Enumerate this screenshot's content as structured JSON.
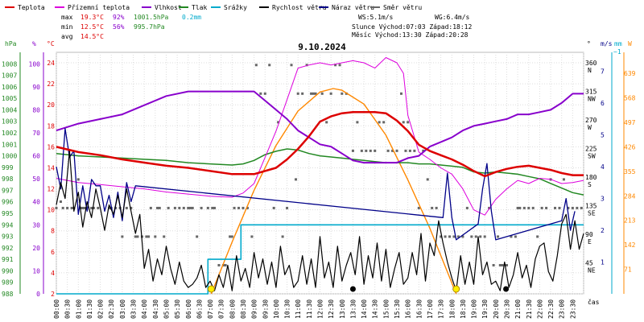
{
  "legend": [
    {
      "label": "Teplota",
      "color": "#dd0000"
    },
    {
      "label": "Přízemní teplota",
      "color": "#dd00dd"
    },
    {
      "label": "Vlhkost",
      "color": "#8800cc"
    },
    {
      "label": "Tlak",
      "color": "#228822"
    },
    {
      "label": "Srážky",
      "color": "#00aacc"
    },
    {
      "label": "Rychlost větru",
      "color": "#000000"
    },
    {
      "label": "Náraz větru",
      "color": "#000088"
    },
    {
      "label": "Směr větru",
      "color": "#666666"
    }
  ],
  "stats": {
    "max_label": "max",
    "max_temp": "19.3°C",
    "max_hum": "92%",
    "max_press": "1001.5hPa",
    "max_rain": "0.2mm",
    "min_label": "min",
    "min_temp": "12.5°C",
    "min_hum": "56%",
    "min_press": "995.7hPa",
    "avg_label": "avg",
    "avg_temp": "14.5°C",
    "ws": "WS:5.1m/s",
    "wg": "WG:6.4m/s",
    "sun": "Slunce Východ:07:03  Západ:18:12",
    "moon": "Měsíc  Východ:13:30  Západ:20:28"
  },
  "chart_data": {
    "type": "line",
    "title": "9.10.2024",
    "x_unit_label": "čas",
    "x_ticks": [
      "00:00",
      "00:30",
      "01:00",
      "01:30",
      "02:00",
      "02:30",
      "03:00",
      "03:30",
      "04:00",
      "04:30",
      "05:00",
      "05:30",
      "06:00",
      "06:30",
      "07:00",
      "07:30",
      "08:00",
      "08:30",
      "09:00",
      "09:30",
      "10:00",
      "10:30",
      "11:00",
      "11:30",
      "12:00",
      "12:30",
      "13:00",
      "13:30",
      "14:00",
      "14:30",
      "15:00",
      "15:30",
      "16:00",
      "16:30",
      "17:00",
      "17:30",
      "18:00",
      "18:30",
      "19:00",
      "19:30",
      "20:00",
      "20:30",
      "21:00",
      "21:30",
      "22:00",
      "22:30",
      "23:00",
      "23:30"
    ],
    "axes": {
      "hpa": {
        "label": "hPa",
        "color": "#228822",
        "ticks": [
          988,
          989,
          990,
          991,
          992,
          993,
          994,
          995,
          996,
          997,
          998,
          999,
          1000,
          1001,
          1002,
          1003,
          1004,
          1005,
          1006,
          1007,
          1008
        ],
        "range": [
          988,
          1009
        ]
      },
      "pct": {
        "label": "%",
        "color": "#8800cc",
        "ticks": [
          0,
          10,
          20,
          30,
          40,
          50,
          60,
          70,
          80,
          90,
          100
        ],
        "range": [
          0,
          105
        ]
      },
      "temp": {
        "label": "°C",
        "color": "#dd0000",
        "ticks": [
          2,
          4,
          6,
          8,
          10,
          12,
          14,
          16,
          18,
          20,
          22,
          24
        ],
        "range": [
          2,
          25
        ]
      },
      "dir": {
        "label": "°",
        "ticks": [
          {
            "deg": "45",
            "name": "NE"
          },
          {
            "deg": "90",
            "name": "E"
          },
          {
            "deg": "135",
            "name": "SE"
          },
          {
            "deg": "180",
            "name": "S"
          },
          {
            "deg": "225",
            "name": "SW"
          },
          {
            "deg": "270",
            "name": "W"
          },
          {
            "deg": "315",
            "name": "NW"
          },
          {
            "deg": "360",
            "name": "N"
          }
        ],
        "range": [
          0,
          380
        ]
      },
      "ms": {
        "label": "m/s",
        "color": "#000088",
        "ticks": [
          1,
          2,
          3,
          4,
          5,
          6,
          7
        ],
        "range": [
          0,
          7.6
        ]
      },
      "mm": {
        "label": "mm",
        "color": "#00aacc",
        "ticks": [
          "~1"
        ]
      },
      "wm2": {
        "label": "W",
        "color": "#ff8800",
        "ticks": [
          71,
          142,
          213,
          284,
          355,
          426,
          497,
          568,
          639
        ],
        "range": [
          0,
          639
        ]
      }
    },
    "series": {
      "temperature": {
        "color": "#dd0000",
        "x": [
          0,
          1,
          2,
          3,
          4,
          5,
          6,
          7,
          8,
          9,
          10,
          10.5,
          11,
          11.5,
          12,
          12.5,
          13,
          13.5,
          14,
          14.5,
          15,
          15.5,
          16,
          16.5,
          17,
          17.5,
          18,
          18.5,
          19,
          19.5,
          20,
          20.5,
          21,
          21.5,
          22,
          22.5,
          23,
          23.5,
          24
        ],
        "y": [
          16.0,
          15.5,
          15.2,
          14.8,
          14.5,
          14.2,
          14.0,
          13.7,
          13.4,
          13.4,
          14.0,
          14.8,
          15.8,
          17.0,
          18.4,
          18.9,
          19.2,
          19.3,
          19.3,
          19.3,
          19.2,
          18.5,
          17.5,
          16.2,
          15.6,
          15.2,
          14.8,
          14.3,
          13.7,
          13.2,
          13.6,
          13.9,
          14.1,
          14.2,
          14.0,
          13.8,
          13.5,
          13.3,
          13.3
        ]
      },
      "ground_temperature": {
        "color": "#dd00dd",
        "x": [
          0,
          1,
          2,
          3,
          4,
          5,
          6,
          7,
          8,
          8.5,
          9,
          9.5,
          10,
          10.5,
          11,
          11.5,
          12,
          12.5,
          13,
          13.5,
          14,
          14.5,
          15,
          15.5,
          15.8,
          16,
          16.5,
          17,
          17.5,
          18,
          18.5,
          19,
          19.5,
          20,
          20.5,
          21,
          21.5,
          22,
          22.5,
          23,
          23.5,
          24
        ],
        "y": [
          13.0,
          12.6,
          12.4,
          12.2,
          12.0,
          11.7,
          11.5,
          11.3,
          11.2,
          11.6,
          12.5,
          15.0,
          17.5,
          20.5,
          23.5,
          23.8,
          24.0,
          23.8,
          24.0,
          24.2,
          24.0,
          23.5,
          24.5,
          24.0,
          23.0,
          19.0,
          15.5,
          14.8,
          14.0,
          13.4,
          12.0,
          10.0,
          9.5,
          11.0,
          12.0,
          12.8,
          12.5,
          13.0,
          12.9,
          12.5,
          12.6,
          12.8
        ]
      },
      "humidity": {
        "color": "#8800cc",
        "x": [
          0,
          1,
          2,
          3,
          4,
          5,
          6,
          7,
          8,
          9,
          9.5,
          10,
          10.5,
          11,
          11.5,
          12,
          12.5,
          13,
          13.5,
          14,
          14.5,
          15,
          15.5,
          16,
          16.5,
          17,
          17.5,
          18,
          18.5,
          19,
          19.5,
          20,
          20.5,
          21,
          21.5,
          22,
          22.5,
          23,
          23.5,
          24
        ],
        "y": [
          71,
          74,
          76,
          78,
          82,
          86,
          88,
          88,
          88,
          88,
          84,
          80,
          76,
          71,
          68,
          65,
          64,
          61,
          58,
          57,
          57,
          57,
          57,
          59,
          60,
          64,
          66,
          68,
          71,
          73,
          74,
          75,
          76,
          78,
          78,
          79,
          80,
          83,
          87,
          87
        ]
      },
      "pressure": {
        "color": "#228822",
        "x": [
          0,
          1,
          2,
          3,
          4,
          5,
          6,
          7,
          8,
          8.5,
          9,
          9.5,
          10,
          10.5,
          11,
          11.5,
          12,
          12.5,
          13,
          13.5,
          14,
          14.5,
          15,
          15.5,
          16,
          16.5,
          17,
          17.5,
          18,
          18.5,
          19,
          19.5,
          20,
          20.5,
          21,
          21.5,
          22,
          22.5,
          23,
          23.5,
          24
        ],
        "y": [
          1000.2,
          1000.0,
          999.9,
          999.8,
          999.7,
          999.6,
          999.4,
          999.3,
          999.2,
          999.3,
          999.6,
          1000.1,
          1000.4,
          1000.6,
          1000.5,
          1000.2,
          1000.0,
          999.9,
          999.8,
          999.7,
          999.6,
          999.5,
          999.4,
          999.4,
          999.4,
          999.3,
          999.3,
          999.2,
          999.1,
          999.0,
          998.6,
          998.5,
          998.6,
          998.5,
          998.4,
          998.2,
          998.0,
          997.6,
          997.2,
          996.8,
          996.6
        ]
      },
      "rain": {
        "color": "#00aacc",
        "x": [
          0,
          6.9,
          6.9,
          8.4,
          8.4,
          24
        ],
        "y": [
          0,
          0,
          0.1,
          0.1,
          0.2,
          0.2
        ]
      },
      "wind_speed": {
        "color": "#000000",
        "x": [
          0,
          0.2,
          0.4,
          0.6,
          0.8,
          1.0,
          1.2,
          1.4,
          1.6,
          1.8,
          2.0,
          2.2,
          2.4,
          2.6,
          2.8,
          3.0,
          3.2,
          3.4,
          3.6,
          3.8,
          4.0,
          4.2,
          4.4,
          4.6,
          4.8,
          5.0,
          5.2,
          5.4,
          5.6,
          5.8,
          6.0,
          6.2,
          6.4,
          6.6,
          6.8,
          7.0,
          7.2,
          7.4,
          7.6,
          7.8,
          8.0,
          8.2,
          8.4,
          8.6,
          8.8,
          9.0,
          9.2,
          9.4,
          9.6,
          9.8,
          10.0,
          10.2,
          10.4,
          10.6,
          10.8,
          11.0,
          11.2,
          11.4,
          11.6,
          11.8,
          12.0,
          12.2,
          12.4,
          12.6,
          12.8,
          13.0,
          13.2,
          13.4,
          13.6,
          13.8,
          14.0,
          14.2,
          14.4,
          14.6,
          14.8,
          15.0,
          15.2,
          15.4,
          15.6,
          15.8,
          16.0,
          16.2,
          16.4,
          16.6,
          16.8,
          17.0,
          17.2,
          17.4,
          17.6,
          17.8,
          18.0,
          18.2,
          18.4,
          18.6,
          18.8,
          19.0,
          19.2,
          19.4,
          19.6,
          19.8,
          20.0,
          20.2,
          20.4,
          20.6,
          20.8,
          21.0,
          21.2,
          21.4,
          21.6,
          21.8,
          22.0,
          22.2,
          22.4,
          22.6,
          22.8,
          23.0,
          23.2,
          23.4,
          23.6,
          23.8,
          24.0
        ],
        "y": [
          2.8,
          3.5,
          3.0,
          4.5,
          2.6,
          3.2,
          2.1,
          2.9,
          2.4,
          3.3,
          2.7,
          2.0,
          2.8,
          2.5,
          3.1,
          2.4,
          3.3,
          2.6,
          1.9,
          2.5,
          0.8,
          1.4,
          0.4,
          1.1,
          0.6,
          1.5,
          0.8,
          0.3,
          1.0,
          0.4,
          0.2,
          0.3,
          0.5,
          0.9,
          0.2,
          0.4,
          0.1,
          0.6,
          0.2,
          0.9,
          0.1,
          1.2,
          0.4,
          0.8,
          0.2,
          1.3,
          0.5,
          1.1,
          0.3,
          1.0,
          0.2,
          1.5,
          0.6,
          0.9,
          0.2,
          0.4,
          1.2,
          0.3,
          1.1,
          0.2,
          1.8,
          0.5,
          1.0,
          0.2,
          1.5,
          0.4,
          0.9,
          1.3,
          0.6,
          1.8,
          0.3,
          1.2,
          0.5,
          1.6,
          0.4,
          1.4,
          0.2,
          0.8,
          1.3,
          0.3,
          0.5,
          1.3,
          0.6,
          1.9,
          0.4,
          1.6,
          1.2,
          2.3,
          1.6,
          1.0,
          0.5,
          0.1,
          1.2,
          0.3,
          1.0,
          0.3,
          1.8,
          0.6,
          1.0,
          0.3,
          0.4,
          0.1,
          1.0,
          0.2,
          0.6,
          1.3,
          0.5,
          0.9,
          0.2,
          1.1,
          1.5,
          1.6,
          0.7,
          0.4,
          1.2,
          2.2,
          2.5,
          1.4,
          2.3,
          1.4,
          1.9
        ]
      },
      "wind_gust": {
        "color": "#000088",
        "x": [
          0,
          0.2,
          0.4,
          0.6,
          0.8,
          1.0,
          1.2,
          1.4,
          1.6,
          1.8,
          2.0,
          2.2,
          2.4,
          2.6,
          2.8,
          3.0,
          3.2,
          3.4,
          3.6,
          17.6,
          17.8,
          18.0,
          18.2,
          19.2,
          19.4,
          19.6,
          19.8,
          20.0,
          23.0,
          23.2,
          23.4,
          23.6
        ],
        "y": [
          4.0,
          3.3,
          5.2,
          4.3,
          4.5,
          2.5,
          3.4,
          2.6,
          3.6,
          3.4,
          3.4,
          2.6,
          3.1,
          2.4,
          3.2,
          2.3,
          3.5,
          2.9,
          3.4,
          2.4,
          3.8,
          2.4,
          1.7,
          2.2,
          3.3,
          4.1,
          2.6,
          1.7,
          2.3,
          3.0,
          2.0,
          2.6
        ]
      },
      "solar": {
        "color": "#ff8800",
        "x": [
          7.05,
          8.0,
          9.0,
          10.0,
          11.0,
          12.0,
          12.6,
          13.0,
          14.0,
          15.0,
          16.0,
          17.0,
          18.2
        ],
        "y": [
          0,
          150,
          300,
          430,
          530,
          585,
          595,
          590,
          550,
          460,
          330,
          190,
          0
        ]
      },
      "wind_direction": {
        "color": "#666666",
        "x": [
          0.0,
          0.2,
          0.3,
          0.5,
          0.7,
          0.8,
          1.0,
          1.1,
          1.2,
          1.3,
          1.6,
          1.7,
          1.9,
          2.4,
          2.5,
          2.7,
          2.9,
          3.0,
          3.2,
          3.4,
          3.6,
          3.7,
          3.9,
          4.1,
          4.2,
          4.3,
          4.5,
          4.6,
          4.7,
          4.9,
          5.1,
          5.4,
          5.6,
          5.8,
          6.0,
          6.1,
          6.2,
          6.4,
          6.6,
          6.9,
          7.1,
          7.2,
          7.4,
          7.6,
          7.7,
          7.9,
          8.0,
          8.1,
          8.3,
          8.5,
          8.7,
          8.9,
          9.1,
          9.3,
          9.5,
          9.7,
          9.9,
          10.1,
          10.3,
          10.5,
          10.7,
          10.9,
          11.0,
          11.2,
          11.4,
          11.6,
          11.7,
          11.8,
          12.1,
          12.3,
          12.5,
          12.7,
          12.9,
          13.0,
          13.2,
          13.5,
          13.7,
          13.9,
          14.1,
          14.3,
          14.5,
          14.7,
          14.9,
          15.1,
          15.3,
          15.5,
          15.7,
          15.8,
          15.9,
          16.0,
          16.1,
          16.3,
          16.5,
          16.7,
          16.9,
          17.1,
          17.3,
          17.5,
          17.7,
          17.9,
          18.1,
          18.3,
          18.5,
          18.7,
          18.9,
          19.1,
          19.3,
          19.5,
          19.7,
          19.9,
          20.1,
          20.2,
          20.3,
          20.5,
          20.7,
          20.9,
          21.0,
          21.1,
          21.3,
          21.5,
          21.7,
          21.9,
          22.1,
          22.3,
          22.5,
          22.7,
          22.9,
          23.1,
          23.3,
          23.5,
          23.7,
          23.9
        ],
        "y": [
          135,
          145,
          135,
          135,
          135,
          135,
          180,
          135,
          135,
          135,
          135,
          135,
          135,
          135,
          135,
          135,
          135,
          90,
          135,
          135,
          90,
          90,
          90,
          90,
          90,
          135,
          90,
          135,
          135,
          90,
          135,
          135,
          135,
          135,
          135,
          135,
          135,
          90,
          135,
          135,
          135,
          135,
          45,
          45,
          45,
          90,
          90,
          135,
          135,
          135,
          135,
          90,
          360,
          315,
          315,
          360,
          135,
          270,
          90,
          135,
          360,
          180,
          315,
          315,
          360,
          315,
          315,
          315,
          315,
          270,
          315,
          360,
          360,
          315,
          315,
          225,
          270,
          225,
          225,
          225,
          225,
          270,
          270,
          225,
          225,
          225,
          315,
          270,
          225,
          270,
          225,
          225,
          135,
          225,
          180,
          135,
          135,
          90,
          90,
          90,
          90,
          90,
          90,
          135,
          90,
          90,
          90,
          90,
          135,
          45,
          90,
          45,
          45,
          45,
          90,
          90,
          135,
          135,
          135,
          135,
          135,
          90,
          135,
          135,
          180,
          135,
          135,
          180,
          135,
          135,
          135,
          135
        ]
      }
    },
    "markers": {
      "sun_rise": "07:03",
      "sun_set": "18:12",
      "moon_rise": "13:30",
      "moon_set": "20:28"
    }
  }
}
